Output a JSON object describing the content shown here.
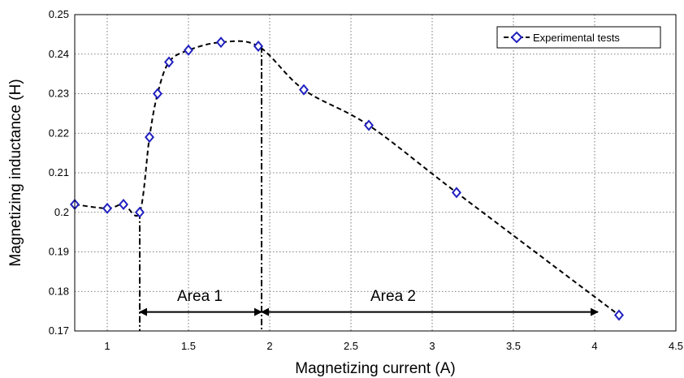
{
  "chart_data": {
    "type": "line",
    "xlabel": "Magnetizing current (A)",
    "ylabel": "Magnetizing inductance (H)",
    "xlim": [
      0.8,
      4.5
    ],
    "ylim": [
      0.17,
      0.25
    ],
    "xticks": [
      "1",
      "1.5",
      "2",
      "2.5",
      "3",
      "3.5",
      "4",
      "4.5"
    ],
    "yticks": [
      "0.17",
      "0.18",
      "0.19",
      "0.2",
      "0.21",
      "0.22",
      "0.23",
      "0.24",
      "0.25"
    ],
    "grid": true,
    "legend_position": "top-right",
    "series": [
      {
        "name": "Experimental tests",
        "color": "#1f1fbf",
        "marker": "diamond",
        "line_style": "dashed",
        "x": [
          0.8,
          1.0,
          1.1,
          1.2,
          1.26,
          1.31,
          1.38,
          1.5,
          1.7,
          1.93,
          2.21,
          2.61,
          3.15,
          4.15
        ],
        "y": [
          0.202,
          0.201,
          0.202,
          0.2,
          0.219,
          0.23,
          0.238,
          0.241,
          0.243,
          0.242,
          0.231,
          0.222,
          0.205,
          0.174
        ]
      }
    ],
    "annotations": {
      "area1": {
        "label": "Area 1",
        "x_start": 1.2,
        "x_end": 1.95,
        "arrow_y": 0.1748
      },
      "area2": {
        "label": "Area 2",
        "x_start": 1.95,
        "x_end": 4.02,
        "arrow_y": 0.1748
      },
      "boundaries": [
        {
          "x": 1.2,
          "y_top": 0.2
        },
        {
          "x": 1.95,
          "y_top": 0.242
        }
      ]
    }
  }
}
